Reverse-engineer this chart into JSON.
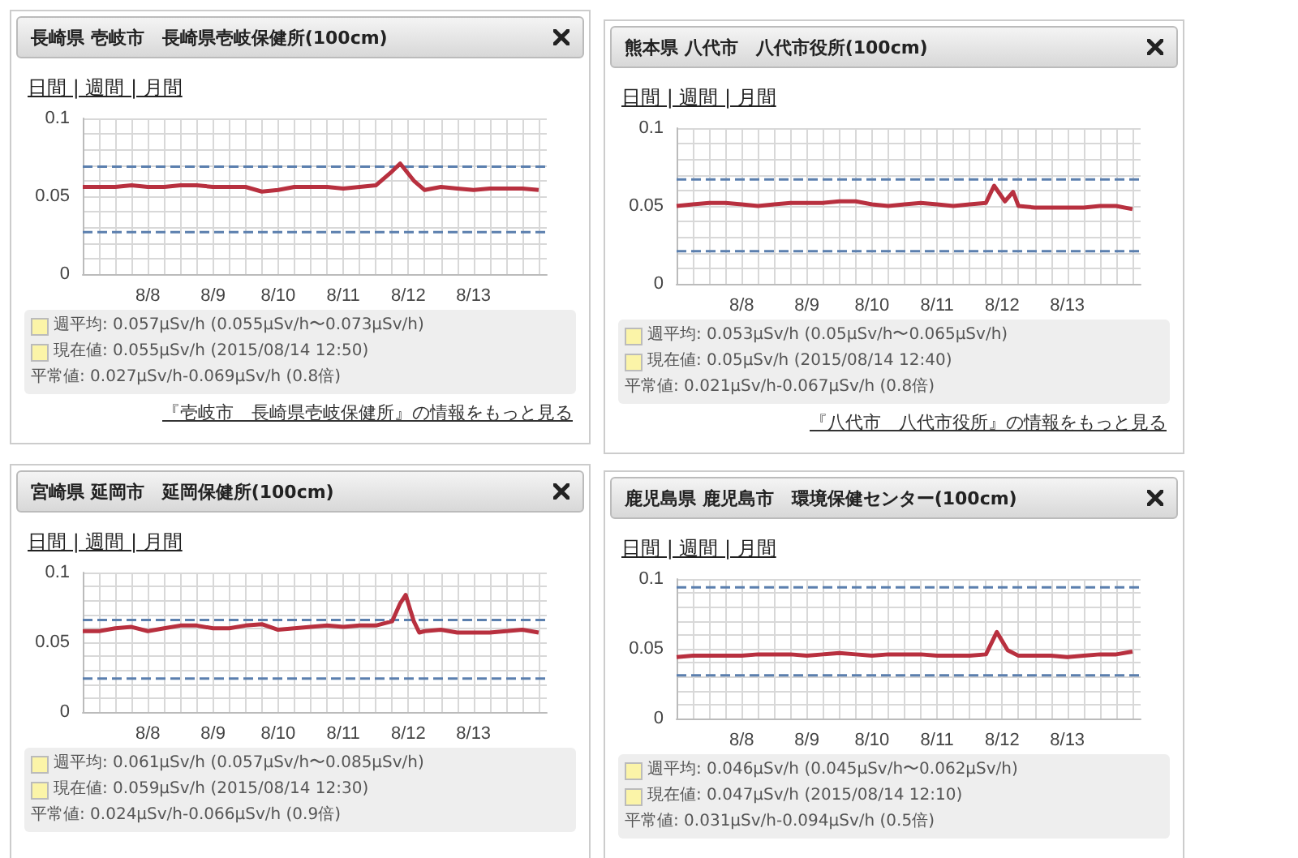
{
  "chart_data": [
    {
      "type": "line",
      "title": "長崎県 壱岐市　長崎県壱岐保健所(100cm)",
      "annotations": [
        "日間 | 週間 | 月間",
        "週平均: 0.057μSv/h (0.055μSv/h〜0.073μSv/h)",
        "現在値: 0.055μSv/h (2015/08/14 12:50)",
        "平常値: 0.027μSv/h-0.069μSv/h (0.8倍)",
        "『壱岐市　長崎県壱岐保健所』の情報をもっと見る"
      ],
      "x": [
        "2015-08-07T12:00",
        "2015-08-07T18:00",
        "2015-08-08T00:00",
        "2015-08-08T06:00",
        "2015-08-08T12:00",
        "2015-08-08T18:00",
        "2015-08-09T00:00",
        "2015-08-09T06:00",
        "2015-08-09T12:00",
        "2015-08-09T18:00",
        "2015-08-10T00:00",
        "2015-08-10T06:00",
        "2015-08-10T12:00",
        "2015-08-10T18:00",
        "2015-08-11T00:00",
        "2015-08-11T06:00",
        "2015-08-11T12:00",
        "2015-08-11T18:00",
        "2015-08-12T00:00",
        "2015-08-12T06:00",
        "2015-08-12T09:00",
        "2015-08-12T14:00",
        "2015-08-12T18:00",
        "2015-08-13T00:00",
        "2015-08-13T06:00",
        "2015-08-13T12:00",
        "2015-08-13T18:00",
        "2015-08-14T00:00",
        "2015-08-14T06:00",
        "2015-08-14T12:00"
      ],
      "series": [
        {
          "color": "#b8303f",
          "values": [
            0.056,
            0.056,
            0.056,
            0.057,
            0.056,
            0.056,
            0.057,
            0.057,
            0.056,
            0.056,
            0.056,
            0.053,
            0.054,
            0.056,
            0.056,
            0.056,
            0.055,
            0.056,
            0.057,
            0.066,
            0.071,
            0.06,
            0.054,
            0.056,
            0.055,
            0.054,
            0.055,
            0.055,
            0.055,
            0.054
          ]
        }
      ],
      "ref_lines": [
        {
          "axis": "y",
          "value": 0.069,
          "color": "#5b7fae",
          "line_style": "dashed"
        },
        {
          "axis": "y",
          "value": 0.027,
          "color": "#5b7fae",
          "line_style": "dashed"
        }
      ],
      "xlim": [
        "2015-08-07T12:00",
        "2015-08-14T15:00"
      ],
      "xticks": [
        {
          "value": "2015-08-07T12:00",
          "label": null
        },
        {
          "value": "2015-08-07T18:00",
          "label": null
        },
        {
          "value": "2015-08-08T00:00",
          "label": null
        },
        {
          "value": "2015-08-08T06:00",
          "label": null
        },
        {
          "value": "2015-08-08T12:00",
          "label": "8/8"
        },
        {
          "value": "2015-08-08T18:00",
          "label": null
        },
        {
          "value": "2015-08-09T00:00",
          "label": null
        },
        {
          "value": "2015-08-09T06:00",
          "label": null
        },
        {
          "value": "2015-08-09T12:00",
          "label": "8/9"
        },
        {
          "value": "2015-08-09T18:00",
          "label": null
        },
        {
          "value": "2015-08-10T00:00",
          "label": null
        },
        {
          "value": "2015-08-10T06:00",
          "label": null
        },
        {
          "value": "2015-08-10T12:00",
          "label": "8/10"
        },
        {
          "value": "2015-08-10T18:00",
          "label": null
        },
        {
          "value": "2015-08-11T00:00",
          "label": null
        },
        {
          "value": "2015-08-11T06:00",
          "label": null
        },
        {
          "value": "2015-08-11T12:00",
          "label": "8/11"
        },
        {
          "value": "2015-08-11T18:00",
          "label": null
        },
        {
          "value": "2015-08-12T00:00",
          "label": null
        },
        {
          "value": "2015-08-12T06:00",
          "label": null
        },
        {
          "value": "2015-08-12T12:00",
          "label": "8/12"
        },
        {
          "value": "2015-08-12T18:00",
          "label": null
        },
        {
          "value": "2015-08-13T00:00",
          "label": null
        },
        {
          "value": "2015-08-13T06:00",
          "label": null
        },
        {
          "value": "2015-08-13T12:00",
          "label": "8/13"
        },
        {
          "value": "2015-08-13T18:00",
          "label": null
        },
        {
          "value": "2015-08-14T00:00",
          "label": null
        },
        {
          "value": "2015-08-14T06:00",
          "label": null
        },
        {
          "value": "2015-08-14T12:00",
          "label": null
        }
      ],
      "ylim": [
        0,
        0.1
      ],
      "yticks": [
        0,
        {
          "value": 0.01,
          "label": null
        },
        {
          "value": 0.02,
          "label": null
        },
        {
          "value": 0.03,
          "label": null
        },
        {
          "value": 0.04,
          "label": null
        },
        0.05,
        {
          "value": 0.06,
          "label": null
        },
        {
          "value": 0.07,
          "label": null
        },
        {
          "value": 0.08,
          "label": null
        },
        {
          "value": 0.09,
          "label": null
        },
        0.1
      ],
      "grid": true,
      "marker": "none",
      "line_style": "solid"
    },
    {
      "type": "line",
      "title": "熊本県 八代市　八代市役所(100cm)",
      "annotations": [
        "日間 | 週間 | 月間",
        "週平均: 0.053μSv/h (0.05μSv/h〜0.065μSv/h)",
        "現在値: 0.05μSv/h (2015/08/14 12:40)",
        "平常値: 0.021μSv/h-0.067μSv/h (0.8倍)",
        "『八代市　八代市役所』の情報をもっと見る"
      ],
      "x": [
        "2015-08-07T12:00",
        "2015-08-07T18:00",
        "2015-08-08T00:00",
        "2015-08-08T06:00",
        "2015-08-08T12:00",
        "2015-08-08T18:00",
        "2015-08-09T00:00",
        "2015-08-09T06:00",
        "2015-08-09T12:00",
        "2015-08-09T18:00",
        "2015-08-10T00:00",
        "2015-08-10T06:00",
        "2015-08-10T12:00",
        "2015-08-10T18:00",
        "2015-08-11T00:00",
        "2015-08-11T06:00",
        "2015-08-11T12:00",
        "2015-08-11T18:00",
        "2015-08-12T00:00",
        "2015-08-12T06:00",
        "2015-08-12T09:00",
        "2015-08-12T13:00",
        "2015-08-12T16:00",
        "2015-08-12T18:00",
        "2015-08-13T00:00",
        "2015-08-13T06:00",
        "2015-08-13T12:00",
        "2015-08-13T18:00",
        "2015-08-14T00:00",
        "2015-08-14T06:00",
        "2015-08-14T12:00"
      ],
      "series": [
        {
          "color": "#b8303f",
          "values": [
            0.05,
            0.051,
            0.052,
            0.052,
            0.051,
            0.05,
            0.051,
            0.052,
            0.052,
            0.052,
            0.053,
            0.053,
            0.051,
            0.05,
            0.051,
            0.052,
            0.051,
            0.05,
            0.051,
            0.052,
            0.063,
            0.053,
            0.059,
            0.05,
            0.049,
            0.049,
            0.049,
            0.049,
            0.05,
            0.05,
            0.048
          ]
        }
      ],
      "ref_lines": [
        {
          "axis": "y",
          "value": 0.067,
          "color": "#5b7fae",
          "line_style": "dashed"
        },
        {
          "axis": "y",
          "value": 0.021,
          "color": "#5b7fae",
          "line_style": "dashed"
        }
      ],
      "xlim": [
        "2015-08-07T12:00",
        "2015-08-14T15:00"
      ],
      "xticks": [
        {
          "value": "2015-08-07T12:00",
          "label": null
        },
        {
          "value": "2015-08-07T18:00",
          "label": null
        },
        {
          "value": "2015-08-08T00:00",
          "label": null
        },
        {
          "value": "2015-08-08T06:00",
          "label": null
        },
        {
          "value": "2015-08-08T12:00",
          "label": "8/8"
        },
        {
          "value": "2015-08-08T18:00",
          "label": null
        },
        {
          "value": "2015-08-09T00:00",
          "label": null
        },
        {
          "value": "2015-08-09T06:00",
          "label": null
        },
        {
          "value": "2015-08-09T12:00",
          "label": "8/9"
        },
        {
          "value": "2015-08-09T18:00",
          "label": null
        },
        {
          "value": "2015-08-10T00:00",
          "label": null
        },
        {
          "value": "2015-08-10T06:00",
          "label": null
        },
        {
          "value": "2015-08-10T12:00",
          "label": "8/10"
        },
        {
          "value": "2015-08-10T18:00",
          "label": null
        },
        {
          "value": "2015-08-11T00:00",
          "label": null
        },
        {
          "value": "2015-08-11T06:00",
          "label": null
        },
        {
          "value": "2015-08-11T12:00",
          "label": "8/11"
        },
        {
          "value": "2015-08-11T18:00",
          "label": null
        },
        {
          "value": "2015-08-12T00:00",
          "label": null
        },
        {
          "value": "2015-08-12T06:00",
          "label": null
        },
        {
          "value": "2015-08-12T12:00",
          "label": "8/12"
        },
        {
          "value": "2015-08-12T18:00",
          "label": null
        },
        {
          "value": "2015-08-13T00:00",
          "label": null
        },
        {
          "value": "2015-08-13T06:00",
          "label": null
        },
        {
          "value": "2015-08-13T12:00",
          "label": "8/13"
        },
        {
          "value": "2015-08-13T18:00",
          "label": null
        },
        {
          "value": "2015-08-14T00:00",
          "label": null
        },
        {
          "value": "2015-08-14T06:00",
          "label": null
        },
        {
          "value": "2015-08-14T12:00",
          "label": null
        }
      ],
      "ylim": [
        0,
        0.1
      ],
      "yticks": [
        0,
        {
          "value": 0.01,
          "label": null
        },
        {
          "value": 0.02,
          "label": null
        },
        {
          "value": 0.03,
          "label": null
        },
        {
          "value": 0.04,
          "label": null
        },
        0.05,
        {
          "value": 0.06,
          "label": null
        },
        {
          "value": 0.07,
          "label": null
        },
        {
          "value": 0.08,
          "label": null
        },
        {
          "value": 0.09,
          "label": null
        },
        0.1
      ],
      "grid": true,
      "marker": "none",
      "line_style": "solid"
    },
    {
      "type": "line",
      "title": "宮崎県 延岡市　延岡保健所(100cm)",
      "annotations": [
        "日間 | 週間 | 月間",
        "週平均: 0.061μSv/h (0.057μSv/h〜0.085μSv/h)",
        "現在値: 0.059μSv/h (2015/08/14 12:30)",
        "平常値: 0.024μSv/h-0.066μSv/h (0.9倍)"
      ],
      "x": [
        "2015-08-07T12:00",
        "2015-08-07T18:00",
        "2015-08-08T00:00",
        "2015-08-08T06:00",
        "2015-08-08T12:00",
        "2015-08-08T18:00",
        "2015-08-09T00:00",
        "2015-08-09T06:00",
        "2015-08-09T12:00",
        "2015-08-09T18:00",
        "2015-08-10T00:00",
        "2015-08-10T06:00",
        "2015-08-10T12:00",
        "2015-08-10T18:00",
        "2015-08-11T00:00",
        "2015-08-11T06:00",
        "2015-08-11T12:00",
        "2015-08-11T18:00",
        "2015-08-12T00:00",
        "2015-08-12T06:00",
        "2015-08-12T09:00",
        "2015-08-12T11:00",
        "2015-08-12T14:00",
        "2015-08-12T16:00",
        "2015-08-12T18:00",
        "2015-08-13T00:00",
        "2015-08-13T06:00",
        "2015-08-13T12:00",
        "2015-08-13T18:00",
        "2015-08-14T00:00",
        "2015-08-14T06:00",
        "2015-08-14T12:00"
      ],
      "series": [
        {
          "color": "#b8303f",
          "values": [
            0.058,
            0.058,
            0.06,
            0.061,
            0.058,
            0.06,
            0.062,
            0.062,
            0.06,
            0.06,
            0.062,
            0.063,
            0.059,
            0.06,
            0.061,
            0.062,
            0.061,
            0.062,
            0.062,
            0.065,
            0.078,
            0.084,
            0.065,
            0.057,
            0.058,
            0.059,
            0.057,
            0.057,
            0.057,
            0.058,
            0.059,
            0.057
          ]
        }
      ],
      "ref_lines": [
        {
          "axis": "y",
          "value": 0.066,
          "color": "#5b7fae",
          "line_style": "dashed"
        },
        {
          "axis": "y",
          "value": 0.024,
          "color": "#5b7fae",
          "line_style": "dashed"
        }
      ],
      "xlim": [
        "2015-08-07T12:00",
        "2015-08-14T15:00"
      ],
      "xticks": [
        {
          "value": "2015-08-07T12:00",
          "label": null
        },
        {
          "value": "2015-08-07T18:00",
          "label": null
        },
        {
          "value": "2015-08-08T00:00",
          "label": null
        },
        {
          "value": "2015-08-08T06:00",
          "label": null
        },
        {
          "value": "2015-08-08T12:00",
          "label": "8/8"
        },
        {
          "value": "2015-08-08T18:00",
          "label": null
        },
        {
          "value": "2015-08-09T00:00",
          "label": null
        },
        {
          "value": "2015-08-09T06:00",
          "label": null
        },
        {
          "value": "2015-08-09T12:00",
          "label": "8/9"
        },
        {
          "value": "2015-08-09T18:00",
          "label": null
        },
        {
          "value": "2015-08-10T00:00",
          "label": null
        },
        {
          "value": "2015-08-10T06:00",
          "label": null
        },
        {
          "value": "2015-08-10T12:00",
          "label": "8/10"
        },
        {
          "value": "2015-08-10T18:00",
          "label": null
        },
        {
          "value": "2015-08-11T00:00",
          "label": null
        },
        {
          "value": "2015-08-11T06:00",
          "label": null
        },
        {
          "value": "2015-08-11T12:00",
          "label": "8/11"
        },
        {
          "value": "2015-08-11T18:00",
          "label": null
        },
        {
          "value": "2015-08-12T00:00",
          "label": null
        },
        {
          "value": "2015-08-12T06:00",
          "label": null
        },
        {
          "value": "2015-08-12T12:00",
          "label": "8/12"
        },
        {
          "value": "2015-08-12T18:00",
          "label": null
        },
        {
          "value": "2015-08-13T00:00",
          "label": null
        },
        {
          "value": "2015-08-13T06:00",
          "label": null
        },
        {
          "value": "2015-08-13T12:00",
          "label": "8/13"
        },
        {
          "value": "2015-08-13T18:00",
          "label": null
        },
        {
          "value": "2015-08-14T00:00",
          "label": null
        },
        {
          "value": "2015-08-14T06:00",
          "label": null
        },
        {
          "value": "2015-08-14T12:00",
          "label": null
        }
      ],
      "ylim": [
        0,
        0.1
      ],
      "yticks": [
        0,
        {
          "value": 0.01,
          "label": null
        },
        {
          "value": 0.02,
          "label": null
        },
        {
          "value": 0.03,
          "label": null
        },
        {
          "value": 0.04,
          "label": null
        },
        0.05,
        {
          "value": 0.06,
          "label": null
        },
        {
          "value": 0.07,
          "label": null
        },
        {
          "value": 0.08,
          "label": null
        },
        {
          "value": 0.09,
          "label": null
        },
        0.1
      ],
      "grid": true,
      "marker": "none",
      "line_style": "solid"
    },
    {
      "type": "line",
      "title": "鹿児島県 鹿児島市　環境保健センター(100cm)",
      "annotations": [
        "日間 | 週間 | 月間",
        "週平均: 0.046μSv/h (0.045μSv/h〜0.062μSv/h)",
        "現在値: 0.047μSv/h (2015/08/14 12:10)",
        "平常値: 0.031μSv/h-0.094μSv/h (0.5倍)"
      ],
      "x": [
        "2015-08-07T12:00",
        "2015-08-07T18:00",
        "2015-08-08T00:00",
        "2015-08-08T06:00",
        "2015-08-08T12:00",
        "2015-08-08T18:00",
        "2015-08-09T00:00",
        "2015-08-09T06:00",
        "2015-08-09T12:00",
        "2015-08-09T18:00",
        "2015-08-10T00:00",
        "2015-08-10T06:00",
        "2015-08-10T12:00",
        "2015-08-10T18:00",
        "2015-08-11T00:00",
        "2015-08-11T06:00",
        "2015-08-11T12:00",
        "2015-08-11T18:00",
        "2015-08-12T00:00",
        "2015-08-12T06:00",
        "2015-08-12T10:00",
        "2015-08-12T14:00",
        "2015-08-12T18:00",
        "2015-08-13T00:00",
        "2015-08-13T06:00",
        "2015-08-13T12:00",
        "2015-08-13T18:00",
        "2015-08-14T00:00",
        "2015-08-14T06:00",
        "2015-08-14T12:00"
      ],
      "series": [
        {
          "color": "#b8303f",
          "values": [
            0.044,
            0.045,
            0.045,
            0.045,
            0.045,
            0.046,
            0.046,
            0.046,
            0.045,
            0.046,
            0.047,
            0.046,
            0.045,
            0.046,
            0.046,
            0.046,
            0.045,
            0.045,
            0.045,
            0.046,
            0.062,
            0.049,
            0.045,
            0.045,
            0.045,
            0.044,
            0.045,
            0.046,
            0.046,
            0.048
          ]
        }
      ],
      "ref_lines": [
        {
          "axis": "y",
          "value": 0.094,
          "color": "#5b7fae",
          "line_style": "dashed"
        },
        {
          "axis": "y",
          "value": 0.031,
          "color": "#5b7fae",
          "line_style": "dashed"
        }
      ],
      "xlim": [
        "2015-08-07T12:00",
        "2015-08-14T15:00"
      ],
      "xticks": [
        {
          "value": "2015-08-07T12:00",
          "label": null
        },
        {
          "value": "2015-08-07T18:00",
          "label": null
        },
        {
          "value": "2015-08-08T00:00",
          "label": null
        },
        {
          "value": "2015-08-08T06:00",
          "label": null
        },
        {
          "value": "2015-08-08T12:00",
          "label": "8/8"
        },
        {
          "value": "2015-08-08T18:00",
          "label": null
        },
        {
          "value": "2015-08-09T00:00",
          "label": null
        },
        {
          "value": "2015-08-09T06:00",
          "label": null
        },
        {
          "value": "2015-08-09T12:00",
          "label": "8/9"
        },
        {
          "value": "2015-08-09T18:00",
          "label": null
        },
        {
          "value": "2015-08-10T00:00",
          "label": null
        },
        {
          "value": "2015-08-10T06:00",
          "label": null
        },
        {
          "value": "2015-08-10T12:00",
          "label": "8/10"
        },
        {
          "value": "2015-08-10T18:00",
          "label": null
        },
        {
          "value": "2015-08-11T00:00",
          "label": null
        },
        {
          "value": "2015-08-11T06:00",
          "label": null
        },
        {
          "value": "2015-08-11T12:00",
          "label": "8/11"
        },
        {
          "value": "2015-08-11T18:00",
          "label": null
        },
        {
          "value": "2015-08-12T00:00",
          "label": null
        },
        {
          "value": "2015-08-12T06:00",
          "label": null
        },
        {
          "value": "2015-08-12T12:00",
          "label": "8/12"
        },
        {
          "value": "2015-08-12T18:00",
          "label": null
        },
        {
          "value": "2015-08-13T00:00",
          "label": null
        },
        {
          "value": "2015-08-13T06:00",
          "label": null
        },
        {
          "value": "2015-08-13T12:00",
          "label": "8/13"
        },
        {
          "value": "2015-08-13T18:00",
          "label": null
        },
        {
          "value": "2015-08-14T00:00",
          "label": null
        },
        {
          "value": "2015-08-14T06:00",
          "label": null
        },
        {
          "value": "2015-08-14T12:00",
          "label": null
        }
      ],
      "ylim": [
        0,
        0.1
      ],
      "yticks": [
        0,
        {
          "value": 0.01,
          "label": null
        },
        {
          "value": 0.02,
          "label": null
        },
        {
          "value": 0.03,
          "label": null
        },
        {
          "value": 0.04,
          "label": null
        },
        0.05,
        {
          "value": 0.06,
          "label": null
        },
        {
          "value": 0.07,
          "label": null
        },
        {
          "value": 0.08,
          "label": null
        },
        {
          "value": 0.09,
          "label": null
        },
        0.1
      ],
      "grid": true,
      "marker": "none",
      "line_style": "solid"
    }
  ]
}
